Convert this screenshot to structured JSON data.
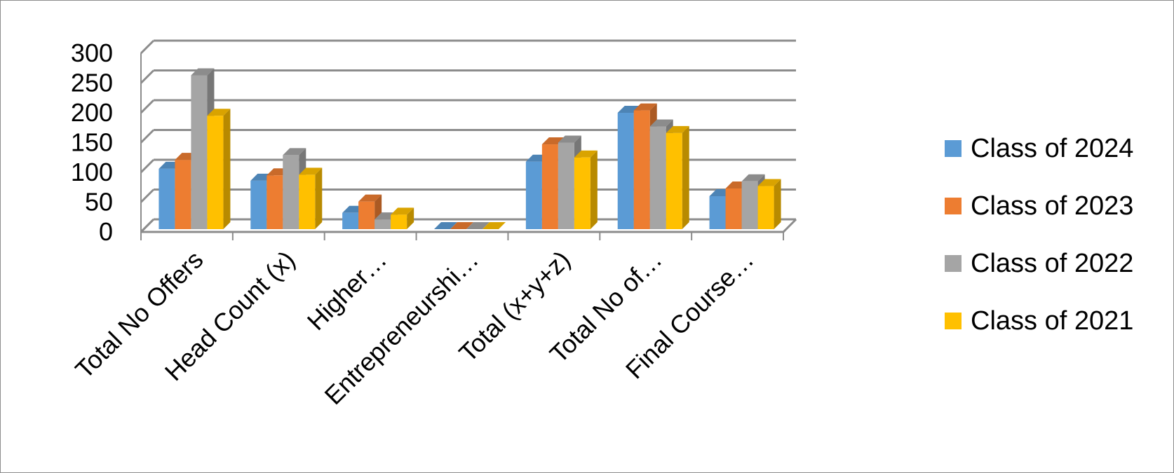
{
  "chart_data": {
    "type": "bar",
    "categories": [
      "Total No Offers",
      "Head Count (x)",
      "Higher…",
      "Entrepreneurshi…",
      "Total (x+y+z)",
      "Total No of…",
      "Final Course…"
    ],
    "series": [
      {
        "name": "Class of 2024",
        "color": "#5b9bd5",
        "values": [
          106,
          86,
          32,
          0,
          118,
          200,
          60
        ]
      },
      {
        "name": "Class of 2023",
        "color": "#ed7d31",
        "values": [
          121,
          95,
          51,
          0,
          147,
          204,
          73
        ]
      },
      {
        "name": "Class of 2022",
        "color": "#a5a5a5",
        "values": [
          263,
          129,
          21,
          0,
          150,
          177,
          85
        ]
      },
      {
        "name": "Class of 2021",
        "color": "#ffc000",
        "values": [
          195,
          96,
          29,
          0,
          125,
          166,
          77
        ]
      }
    ],
    "ylim": [
      0,
      300
    ],
    "yticks": [
      "0",
      "50",
      "100",
      "150",
      "200",
      "250",
      "300"
    ],
    "grid": true,
    "legend_position": "right",
    "three_d": true
  }
}
